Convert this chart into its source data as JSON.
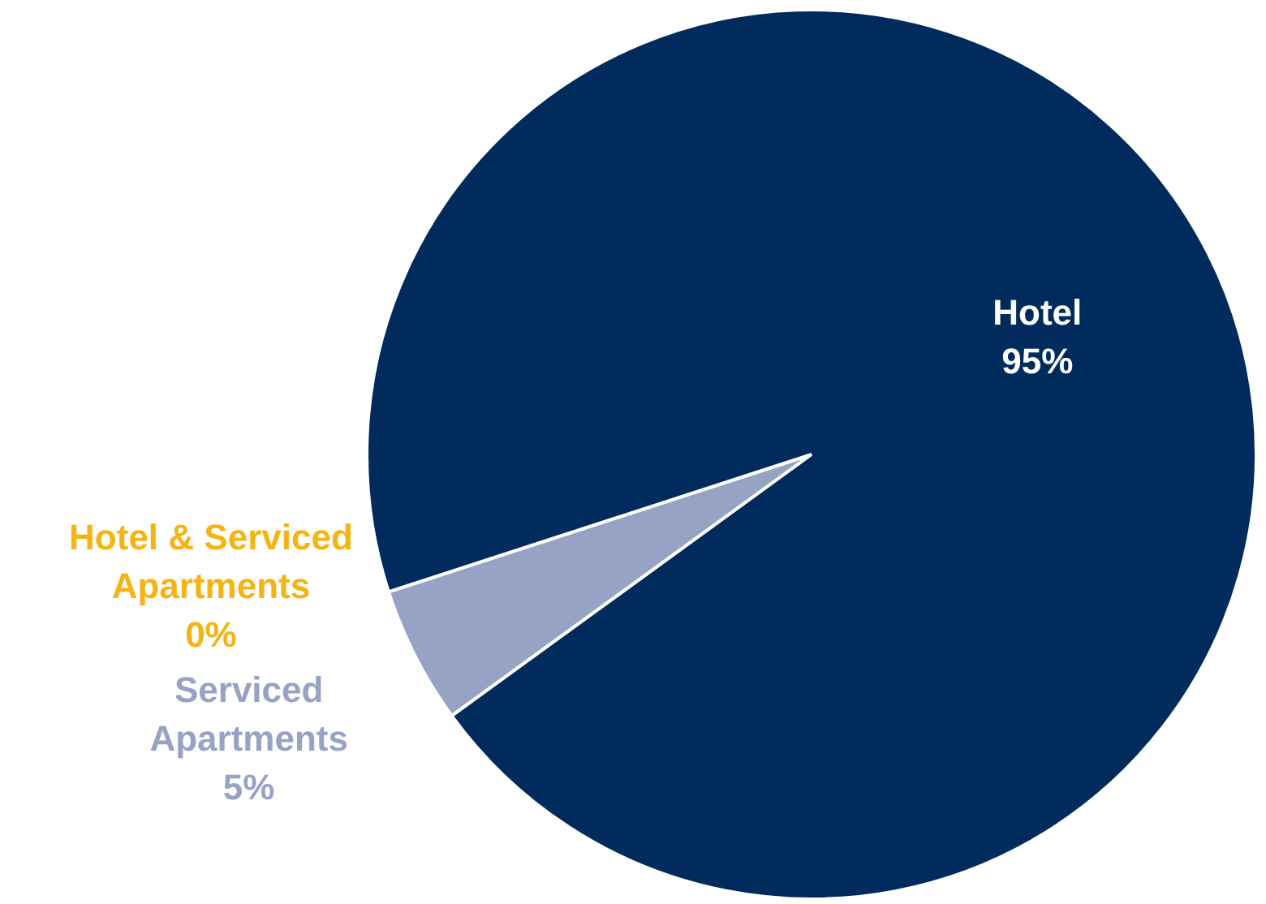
{
  "chart_data": {
    "type": "pie",
    "categories": [
      "Serviced Apartments",
      "Hotel & Serviced Apartments",
      "Hotel"
    ],
    "values": [
      5,
      0,
      95
    ],
    "colors": [
      "#97a3c4",
      "#f5b414",
      "#002b5c"
    ],
    "value_labels": [
      "5%",
      "0%",
      "95%"
    ]
  }
}
